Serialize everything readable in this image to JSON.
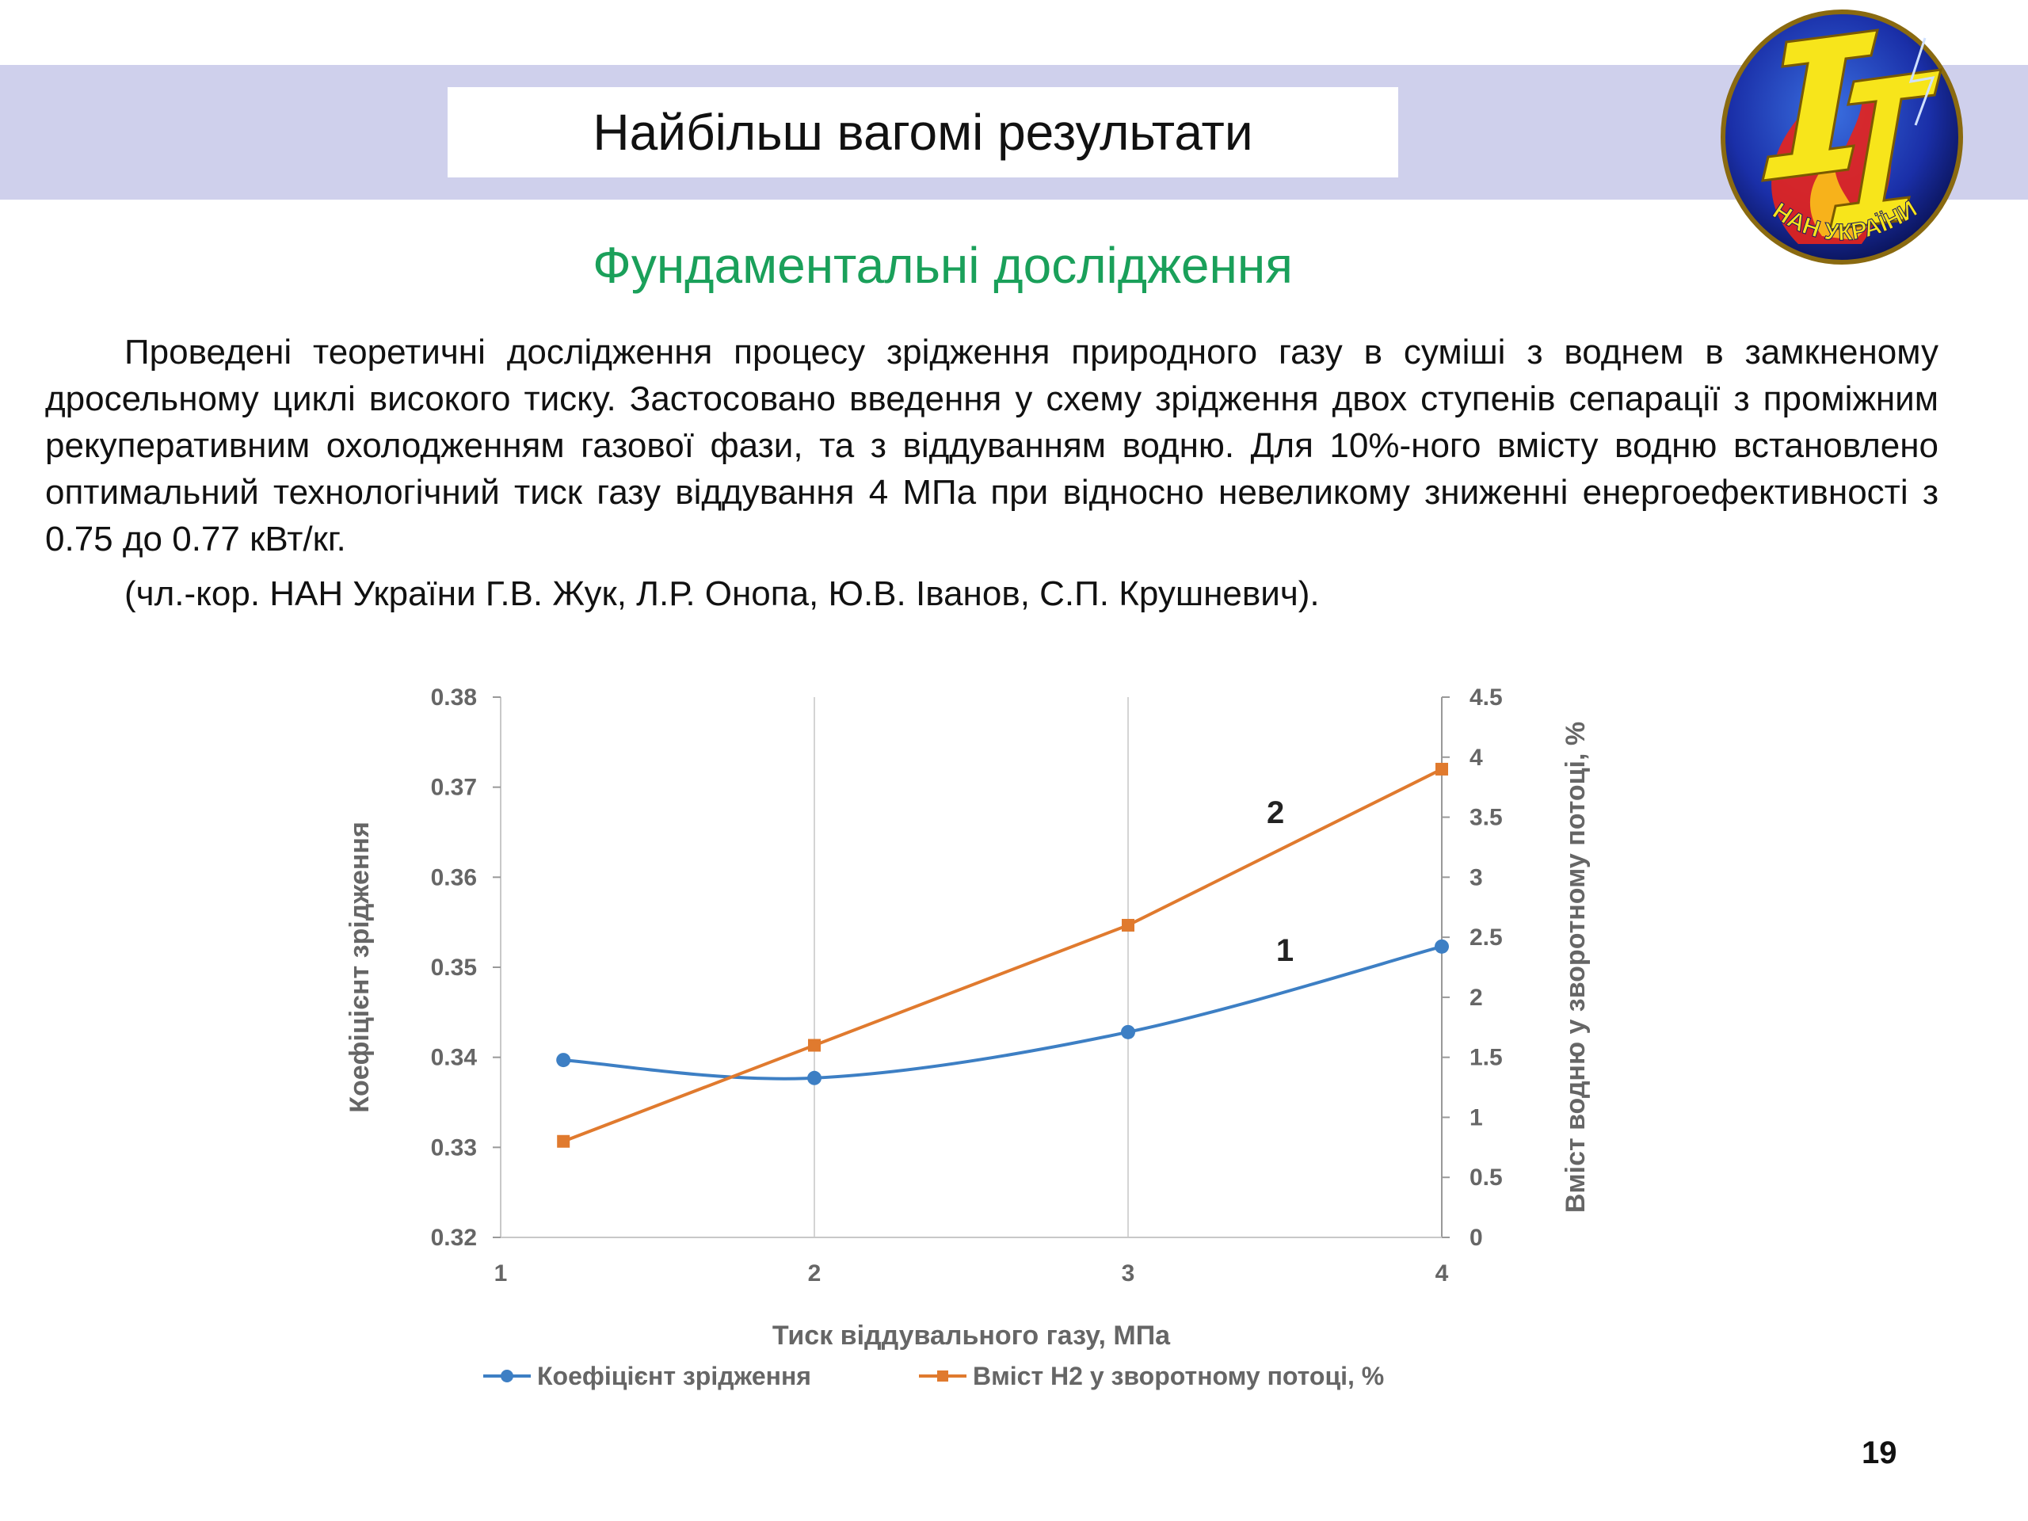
{
  "header": {
    "title": "Найбільш вагомі результати",
    "band_color": "#cfd0ec"
  },
  "logo": {
    "icon": "institute-logo-icon",
    "text": "НАН УКРАЇНИ"
  },
  "subtitle": "Фундаментальні дослідження",
  "body": {
    "paragraph": "Проведені теоретичні дослідження процесу зрідження природного газу в суміші з воднем в замкненому дросельному циклі високого тиску. Застосовано введення у схему зрідження двох ступенів сепарації з проміжним рекуперативним охолодженням газової фази, та з віддуванням водню. Для 10%-ного вмісту водню встановлено оптимальний технологічний тиск газу віддування 4 МПа при відносно невеликому зниженні енергоефективності з 0.75 до 0.77 кВт/кг.",
    "authors": "(чл.-кор. НАН України  Г.В. Жук, Л.Р. Онопа, Ю.В. Іванов, С.П. Крушневич)."
  },
  "chart_data": {
    "type": "line",
    "xlabel": "Тиск віддувального газу, МПа",
    "ylabel_left": "Коефіцієнт зрідження",
    "ylabel_right": "Вміст водню у зворотному потоці, %",
    "xlim": [
      1,
      4
    ],
    "ylim_left": [
      0.32,
      0.38
    ],
    "ylim_right": [
      0,
      4.5
    ],
    "x_ticks": [
      "1",
      "2",
      "3",
      "4"
    ],
    "y_ticks_left": [
      "0.32",
      "0.33",
      "0.34",
      "0.35",
      "0.36",
      "0.37",
      "0.38"
    ],
    "y_ticks_right": [
      "0",
      "0.5",
      "1",
      "1.5",
      "2",
      "2.5",
      "3",
      "3.5",
      "4",
      "4.5"
    ],
    "grid": "vertical",
    "legend_position": "bottom",
    "series": [
      {
        "name": "Коефіцієнт зрідження",
        "label": "1",
        "axis": "left",
        "color": "#3d7fc4",
        "marker": "circle",
        "x": [
          1.2,
          2,
          3,
          4
        ],
        "y": [
          0.3397,
          0.3377,
          0.3428,
          0.3523
        ]
      },
      {
        "name": "Вміст Н2 у зворотному потоці, %",
        "label": "2",
        "axis": "right",
        "color": "#e07a2e",
        "marker": "square",
        "x": [
          1.2,
          2,
          3,
          4
        ],
        "y": [
          0.8,
          1.6,
          2.6,
          3.9
        ]
      }
    ]
  },
  "page_number": "19"
}
